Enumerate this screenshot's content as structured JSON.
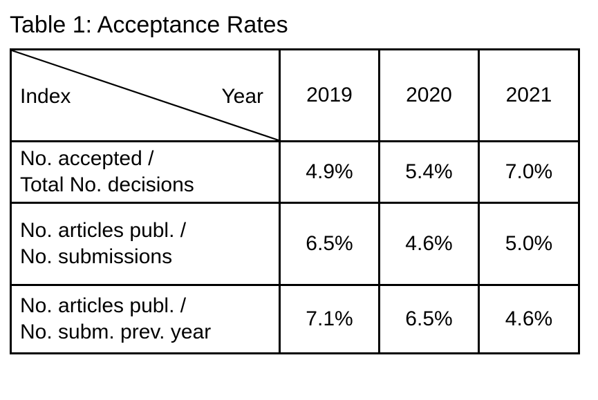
{
  "caption": "Table 1: Acceptance Rates",
  "header": {
    "index_label": "Index",
    "year_label": "Year",
    "years": [
      "2019",
      "2020",
      "2021"
    ]
  },
  "rows": [
    {
      "label_line1": "No. accepted /",
      "label_line2": "Total No. decisions",
      "values": [
        "4.9%",
        "5.4%",
        "7.0%"
      ]
    },
    {
      "label_line1": "No. articles publ. /",
      "label_line2": "No. submissions",
      "values": [
        "6.5%",
        "4.6%",
        "5.0%"
      ]
    },
    {
      "label_line1": "No. articles publ. /",
      "label_line2": "No. subm. prev. year",
      "values": [
        "7.1%",
        "6.5%",
        "4.6%"
      ]
    }
  ]
}
